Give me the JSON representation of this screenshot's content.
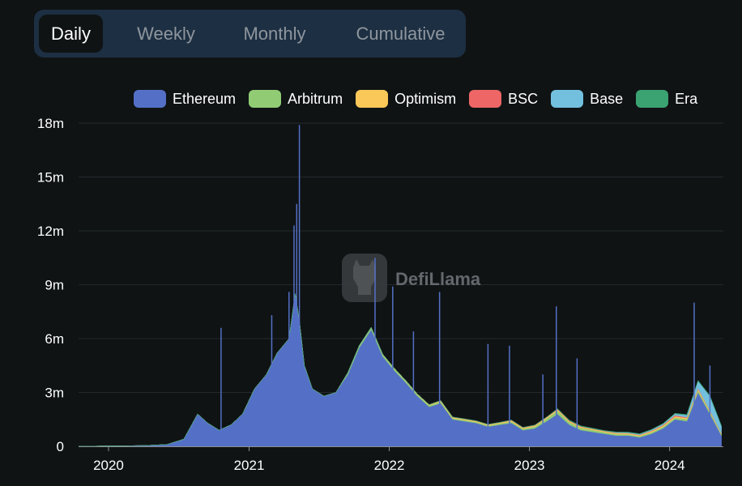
{
  "tabs": [
    {
      "label": "Daily",
      "active": true
    },
    {
      "label": "Weekly",
      "active": false
    },
    {
      "label": "Monthly",
      "active": false
    },
    {
      "label": "Cumulative",
      "active": false
    }
  ],
  "watermark": {
    "text": "DefiLlama",
    "icon": "llama-logo-icon"
  },
  "colors": {
    "background": "#0f1314",
    "tabbar": "#1d2f42",
    "grid": "#23282c",
    "axis": "#8a8f94"
  },
  "chart_data": {
    "type": "area",
    "stacked": true,
    "grid": true,
    "legend_position": "top-right",
    "title": "",
    "xlabel": "",
    "ylabel": "",
    "x_range": [
      "2019-10-15",
      "2024-05-20"
    ],
    "ylim": [
      0,
      18000000
    ],
    "y_ticks": [
      {
        "value": 0,
        "label": "0"
      },
      {
        "value": 3000000,
        "label": "3m"
      },
      {
        "value": 6000000,
        "label": "6m"
      },
      {
        "value": 9000000,
        "label": "9m"
      },
      {
        "value": 12000000,
        "label": "12m"
      },
      {
        "value": 15000000,
        "label": "15m"
      },
      {
        "value": 18000000,
        "label": "18m"
      }
    ],
    "x_ticks": [
      {
        "value": "2020-01-01",
        "label": "2020"
      },
      {
        "value": "2021-01-01",
        "label": "2021"
      },
      {
        "value": "2022-01-01",
        "label": "2022"
      },
      {
        "value": "2023-01-01",
        "label": "2023"
      },
      {
        "value": "2024-01-01",
        "label": "2024"
      }
    ],
    "x": [
      "2019-10-15",
      "2020-01-01",
      "2020-04-01",
      "2020-06-01",
      "2020-07-15",
      "2020-08-20",
      "2020-09-15",
      "2020-10-15",
      "2020-11-15",
      "2020-12-15",
      "2021-01-15",
      "2021-02-15",
      "2021-03-15",
      "2021-04-15",
      "2021-05-01",
      "2021-05-12",
      "2021-05-25",
      "2021-06-15",
      "2021-07-15",
      "2021-08-15",
      "2021-09-15",
      "2021-10-15",
      "2021-11-15",
      "2021-12-15",
      "2022-01-15",
      "2022-02-15",
      "2022-03-15",
      "2022-04-15",
      "2022-05-15",
      "2022-06-15",
      "2022-07-15",
      "2022-08-15",
      "2022-09-15",
      "2022-10-15",
      "2022-11-15",
      "2022-12-15",
      "2023-01-15",
      "2023-02-15",
      "2023-03-15",
      "2023-04-15",
      "2023-05-15",
      "2023-06-15",
      "2023-07-15",
      "2023-08-15",
      "2023-09-15",
      "2023-10-15",
      "2023-11-15",
      "2023-12-15",
      "2024-01-15",
      "2024-02-15",
      "2024-03-15",
      "2024-04-15",
      "2024-05-15"
    ],
    "series": [
      {
        "name": "Ethereum",
        "color": "#5470c6",
        "values": [
          0,
          20000,
          40000,
          100000,
          400000,
          1800000,
          1300000,
          900000,
          1200000,
          1800000,
          3200000,
          4000000,
          5200000,
          6000000,
          8500000,
          7000000,
          4500000,
          3200000,
          2800000,
          3000000,
          4000000,
          5500000,
          6500000,
          5000000,
          4200000,
          3500000,
          2800000,
          2200000,
          2400000,
          1500000,
          1400000,
          1300000,
          1100000,
          1200000,
          1300000,
          900000,
          1000000,
          1400000,
          1800000,
          1200000,
          900000,
          800000,
          700000,
          600000,
          600000,
          500000,
          700000,
          1000000,
          1500000,
          1400000,
          3000000,
          1800000,
          600000
        ]
      },
      {
        "name": "Arbitrum",
        "color": "#91cc75",
        "values": [
          0,
          0,
          0,
          0,
          0,
          0,
          0,
          0,
          0,
          0,
          0,
          0,
          0,
          0,
          0,
          0,
          0,
          0,
          0,
          0,
          100000,
          120000,
          120000,
          110000,
          100000,
          90000,
          90000,
          80000,
          80000,
          70000,
          70000,
          60000,
          60000,
          70000,
          80000,
          80000,
          100000,
          150000,
          180000,
          140000,
          120000,
          110000,
          90000,
          80000,
          70000,
          70000,
          80000,
          90000,
          100000,
          110000,
          120000,
          100000,
          60000
        ]
      },
      {
        "name": "Optimism",
        "color": "#fac858",
        "values": [
          0,
          0,
          0,
          0,
          0,
          0,
          0,
          0,
          0,
          0,
          0,
          0,
          0,
          0,
          0,
          0,
          0,
          0,
          0,
          0,
          0,
          0,
          10000,
          20000,
          30000,
          30000,
          30000,
          40000,
          60000,
          50000,
          50000,
          50000,
          50000,
          50000,
          60000,
          50000,
          60000,
          60000,
          70000,
          60000,
          60000,
          50000,
          50000,
          50000,
          50000,
          50000,
          60000,
          60000,
          70000,
          70000,
          70000,
          60000,
          40000
        ]
      },
      {
        "name": "BSC",
        "color": "#ee6666",
        "values": [
          0,
          0,
          0,
          0,
          0,
          0,
          0,
          0,
          0,
          0,
          0,
          0,
          0,
          0,
          0,
          0,
          0,
          0,
          0,
          0,
          0,
          0,
          0,
          0,
          0,
          0,
          0,
          0,
          10000,
          10000,
          10000,
          10000,
          10000,
          10000,
          20000,
          20000,
          20000,
          20000,
          30000,
          30000,
          30000,
          20000,
          20000,
          20000,
          20000,
          20000,
          30000,
          40000,
          60000,
          40000,
          40000,
          30000,
          20000
        ]
      },
      {
        "name": "Base",
        "color": "#73c0de",
        "values": [
          0,
          0,
          0,
          0,
          0,
          0,
          0,
          0,
          0,
          0,
          0,
          0,
          0,
          0,
          0,
          0,
          0,
          0,
          0,
          0,
          0,
          0,
          0,
          0,
          0,
          0,
          0,
          0,
          0,
          0,
          0,
          0,
          0,
          0,
          0,
          0,
          0,
          0,
          0,
          0,
          0,
          0,
          0,
          30000,
          30000,
          40000,
          50000,
          60000,
          80000,
          120000,
          400000,
          800000,
          400000
        ]
      },
      {
        "name": "Era",
        "color": "#3ba272",
        "values": [
          0,
          0,
          0,
          0,
          0,
          0,
          0,
          0,
          0,
          0,
          0,
          0,
          0,
          0,
          0,
          0,
          0,
          0,
          0,
          0,
          0,
          0,
          0,
          0,
          0,
          0,
          0,
          0,
          0,
          0,
          0,
          0,
          0,
          0,
          0,
          0,
          0,
          0,
          20000,
          30000,
          30000,
          30000,
          20000,
          20000,
          20000,
          20000,
          20000,
          20000,
          30000,
          30000,
          40000,
          30000,
          20000
        ]
      }
    ],
    "spikes": [
      {
        "series": "Ethereum",
        "x": "2020-10-20",
        "y": 6600000
      },
      {
        "series": "Ethereum",
        "x": "2021-05-12",
        "y": 17900000
      },
      {
        "series": "Ethereum",
        "x": "2021-05-05",
        "y": 13500000
      },
      {
        "series": "Ethereum",
        "x": "2021-04-28",
        "y": 12300000
      },
      {
        "series": "Ethereum",
        "x": "2021-04-15",
        "y": 8600000
      },
      {
        "series": "Ethereum",
        "x": "2021-03-01",
        "y": 7300000
      },
      {
        "series": "Ethereum",
        "x": "2021-11-25",
        "y": 10500000
      },
      {
        "series": "Ethereum",
        "x": "2022-01-10",
        "y": 8900000
      },
      {
        "series": "Ethereum",
        "x": "2022-05-12",
        "y": 8600000
      },
      {
        "series": "Ethereum",
        "x": "2022-03-05",
        "y": 6400000
      },
      {
        "series": "Ethereum",
        "x": "2022-09-15",
        "y": 5700000
      },
      {
        "series": "Ethereum",
        "x": "2022-11-10",
        "y": 5600000
      },
      {
        "series": "Ethereum",
        "x": "2023-03-12",
        "y": 7800000
      },
      {
        "series": "Ethereum",
        "x": "2023-05-05",
        "y": 4900000
      },
      {
        "series": "Ethereum",
        "x": "2023-02-05",
        "y": 4000000
      },
      {
        "series": "Ethereum",
        "x": "2024-03-05",
        "y": 8000000
      },
      {
        "series": "Ethereum",
        "x": "2024-04-15",
        "y": 4500000
      }
    ]
  }
}
